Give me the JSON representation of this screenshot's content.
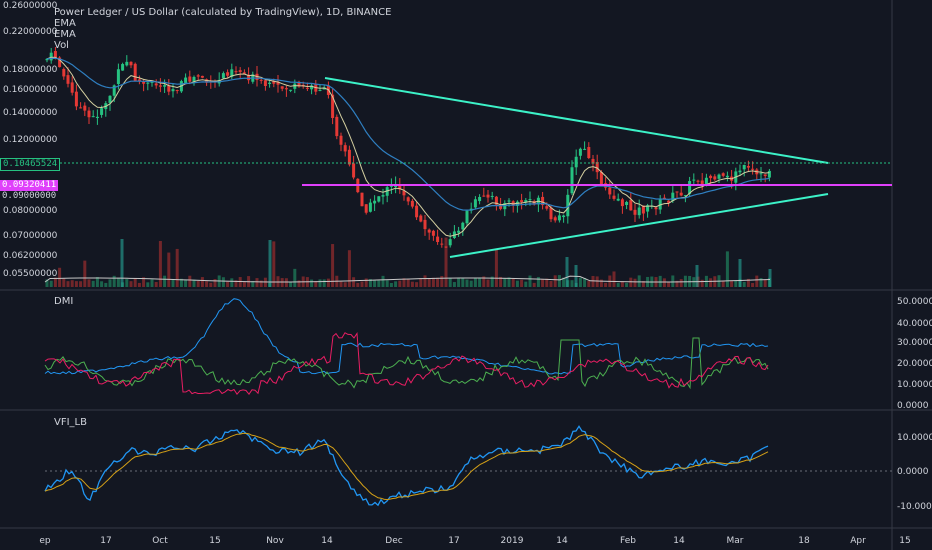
{
  "header": {
    "symbol_line": "Power Ledger / US Dollar (calculated by TradingView), 1D, BINANCE",
    "indicators": [
      "EMA",
      "EMA",
      "Vol"
    ]
  },
  "price_axis": {
    "labels": [
      "0.26000000",
      "0.22000000",
      "0.18000000",
      "0.16000000",
      "0.14000000",
      "0.12000000",
      "0.08000000",
      "0.07000000",
      "0.06200000",
      "0.05500000"
    ],
    "tags": [
      {
        "label": "0.10465524",
        "color": "#26a69a",
        "text_color": "#ffffff"
      },
      {
        "label": "0.09320411",
        "color": "#e040fb",
        "text_color": "#ffffff"
      },
      {
        "label": "0.09000000",
        "color": "#131722",
        "text_color": "#d1d4dc"
      }
    ]
  },
  "dmi_pane": {
    "title": "DMI",
    "axis_labels": [
      "50.0000",
      "40.0000",
      "30.0000",
      "20.0000",
      "10.0000",
      "0.0000"
    ]
  },
  "vfi_pane": {
    "title": "VFI_LB",
    "axis_labels": [
      "10.0000",
      "0.0000",
      "-10.0000"
    ]
  },
  "time_axis": {
    "labels": [
      "ep",
      "17",
      "Oct",
      "15",
      "Nov",
      "14",
      "Dec",
      "17",
      "2019",
      "14",
      "Feb",
      "14",
      "Mar",
      "18",
      "Apr",
      "15"
    ]
  },
  "colors": {
    "background": "#131722",
    "up": "#26c281",
    "down": "#e53935",
    "ema_fast": "#d4cfa0",
    "ema_slow": "#2f7fc1",
    "trendline": "#3cf2c8",
    "support_line": "#e040fb",
    "last_price_line": "#26c281",
    "dmi_plus": "#4caf50",
    "dmi_minus": "#e91e63",
    "adx": "#2196f3",
    "vfi": "#2196f3",
    "vfi_signal": "#d4a017"
  }
}
